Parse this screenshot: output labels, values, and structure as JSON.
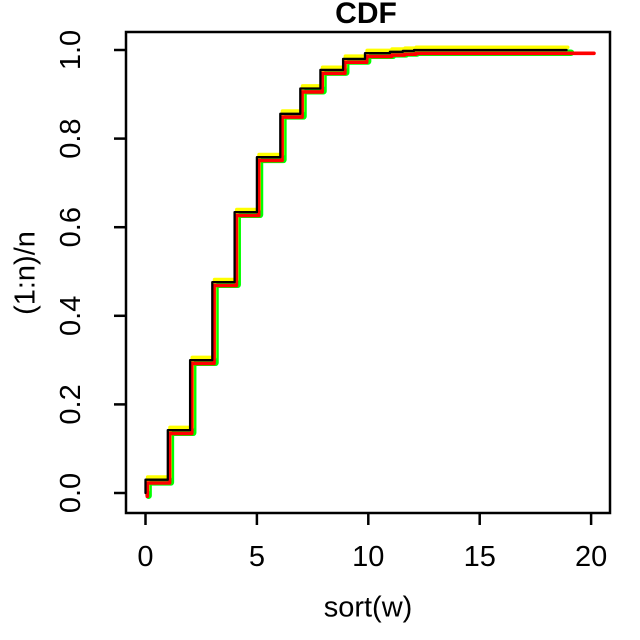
{
  "figure": {
    "title": "CDF",
    "xlabel": "sort(w)",
    "ylabel": "(1:n)/n"
  },
  "chart_data": {
    "type": "line",
    "subtype": "step-ecdf",
    "title": "CDF",
    "xlabel": "sort(w)",
    "ylabel": "(1:n)/n",
    "xlim": [
      0,
      20
    ],
    "ylim": [
      0,
      1
    ],
    "grid": false,
    "legend": "none",
    "background": "#FFFFFF",
    "axis_color": "#000000",
    "x_ticks": [
      0,
      5,
      10,
      15,
      20
    ],
    "x_tick_labels": [
      "0",
      "5",
      "10",
      "15",
      "20"
    ],
    "y_ticks": [
      0.0,
      0.2,
      0.4,
      0.6,
      0.8,
      1.0
    ],
    "y_tick_labels": [
      "0.0",
      "0.2",
      "0.4",
      "0.6",
      "0.8",
      "1.0"
    ],
    "steps_x": [
      0,
      1,
      2,
      3,
      4,
      5,
      6.05,
      6.95,
      7.85,
      8.87,
      9.85,
      10.97,
      11.55,
      12.05
    ],
    "steps_y": [
      0.03,
      0.142,
      0.3,
      0.476,
      0.634,
      0.758,
      0.856,
      0.913,
      0.955,
      0.98,
      0.993,
      0.996,
      0.998,
      1.0
    ],
    "series": [
      {
        "name": "green-cdf",
        "color": "#00FF00",
        "dx": 0.14,
        "dy": -0.006,
        "width": 6.5,
        "x_end": 18.96
      },
      {
        "name": "yellow-cdf",
        "color": "#FFFF00",
        "dx": 0.1,
        "dy": 0.006,
        "width": 3.6,
        "x_end": 18.85
      },
      {
        "name": "red-cdf",
        "color": "#FF0000",
        "dx": 0.08,
        "dy": -0.0075,
        "width": 3.6,
        "x_end": 20.05
      },
      {
        "name": "black-cdf",
        "color": "#000000",
        "dx": 0,
        "dy": 0,
        "width": 2.3,
        "x_end": 18.9
      }
    ]
  }
}
